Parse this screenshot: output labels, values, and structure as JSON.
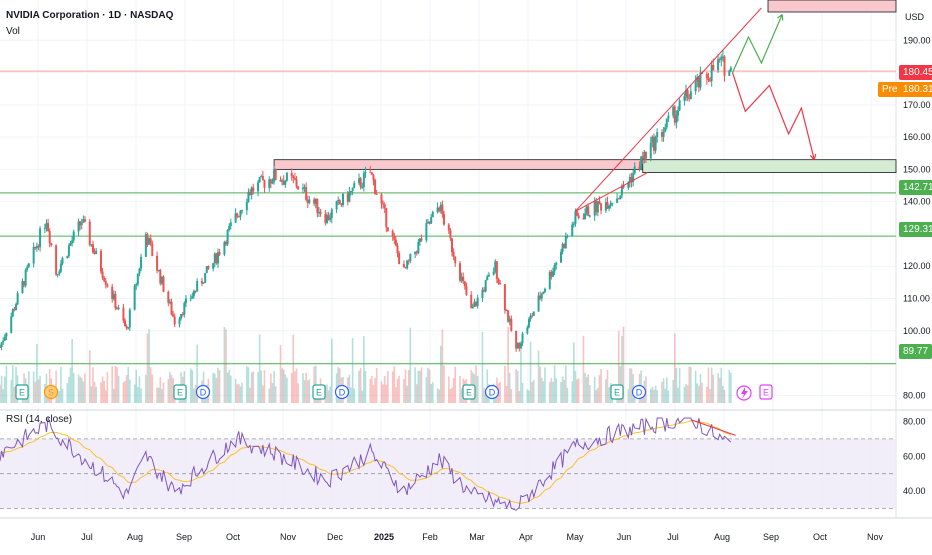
{
  "header": {
    "title": "NVIDIA Corporation · 1D · NASDAQ",
    "vol_label": "Vol"
  },
  "rsi": {
    "label": "RSI (14, close)",
    "ticks": [
      "80.00",
      "60.00",
      "40.00"
    ]
  },
  "price_axis": {
    "currency": "USD",
    "ticks": [
      "190.00",
      "170.00",
      "160.00",
      "150.00",
      "140.00",
      "120.00",
      "110.00",
      "100.00",
      "80.00"
    ]
  },
  "labels": {
    "last_price": "180.45",
    "pre_label": "Pre",
    "pre_price": "180.31",
    "level_1": "142.71",
    "level_2": "129.31",
    "level_3": "89.77"
  },
  "x_axis": {
    "months": [
      "Jun",
      "Jul",
      "Aug",
      "Sep",
      "Oct",
      "Nov",
      "Dec",
      "2025",
      "Feb",
      "Mar",
      "Apr",
      "May",
      "Jun",
      "Jul",
      "Aug",
      "Sep",
      "Oct",
      "Nov"
    ]
  },
  "event_markers": [
    "E",
    "S",
    "E",
    "D",
    "E",
    "D",
    "E",
    "D",
    "E",
    "D",
    "E"
  ],
  "colors": {
    "up": "#26a69a",
    "down": "#ef5350",
    "rsi_line": "#7e57c2",
    "rsi_ma": "#fbc02d",
    "zone_red": "#f8c8cc",
    "zone_green": "#d4ecd4",
    "hline": "#4caf50",
    "last_price_bg": "#f23645",
    "pre_bg": "#fb8c00",
    "level_bg": "#4caf50"
  },
  "chart_data": {
    "type": "candlestick",
    "symbol": "NVDA",
    "interval": "1D",
    "x_range": [
      "2024-05-20",
      "2025-11-30"
    ],
    "y_range": [
      77,
      200
    ],
    "y_scale": "linear",
    "price_path": [
      {
        "date": "2024-05-20",
        "close": 95
      },
      {
        "date": "2024-06-18",
        "close": 135
      },
      {
        "date": "2024-06-24",
        "close": 118
      },
      {
        "date": "2024-07-10",
        "close": 134
      },
      {
        "date": "2024-08-07",
        "close": 100
      },
      {
        "date": "2024-08-19",
        "close": 130
      },
      {
        "date": "2024-09-06",
        "close": 103
      },
      {
        "date": "2024-09-30",
        "close": 121
      },
      {
        "date": "2024-10-22",
        "close": 143
      },
      {
        "date": "2024-11-07",
        "close": 148
      },
      {
        "date": "2024-11-20",
        "close": 146
      },
      {
        "date": "2024-12-10",
        "close": 135
      },
      {
        "date": "2025-01-06",
        "close": 149
      },
      {
        "date": "2025-01-27",
        "close": 118
      },
      {
        "date": "2025-02-18",
        "close": 139
      },
      {
        "date": "2025-03-10",
        "close": 106
      },
      {
        "date": "2025-03-25",
        "close": 120
      },
      {
        "date": "2025-04-07",
        "close": 94
      },
      {
        "date": "2025-05-14",
        "close": 135
      },
      {
        "date": "2025-06-10",
        "close": 142
      },
      {
        "date": "2025-06-30",
        "close": 157
      },
      {
        "date": "2025-07-25",
        "close": 174
      },
      {
        "date": "2025-08-12",
        "close": 183
      },
      {
        "date": "2025-08-19",
        "close": 180.45
      }
    ],
    "last_price": 180.45,
    "pre_price": 180.31,
    "horizontal_levels": [
      142.71,
      129.31,
      89.77
    ],
    "zones": [
      {
        "type": "supply",
        "from": "2024-11-07",
        "to": "2025-06-25",
        "low": 150,
        "high": 153
      },
      {
        "type": "demand",
        "from": "2025-06-25",
        "to": "2025-11-30",
        "low": 149,
        "high": 153
      }
    ],
    "projections": [
      {
        "direction": "up",
        "points": [
          [
            "2025-08-20",
            180
          ],
          [
            "2025-08-30",
            191
          ],
          [
            "2025-09-07",
            183
          ],
          [
            "2025-09-20",
            198
          ]
        ]
      },
      {
        "direction": "down",
        "points": [
          [
            "2025-08-20",
            180
          ],
          [
            "2025-08-28",
            168
          ],
          [
            "2025-09-12",
            176
          ],
          [
            "2025-09-24",
            161
          ],
          [
            "2025-10-02",
            169
          ],
          [
            "2025-10-10",
            153
          ]
        ]
      }
    ],
    "rsi_range": [
      28,
      82
    ],
    "rsi_path": [
      {
        "date": "2024-05-20",
        "value": 62
      },
      {
        "date": "2024-06-18",
        "value": 78
      },
      {
        "date": "2024-07-10",
        "value": 60
      },
      {
        "date": "2024-08-07",
        "value": 38
      },
      {
        "date": "2024-08-19",
        "value": 60
      },
      {
        "date": "2024-09-06",
        "value": 40
      },
      {
        "date": "2024-10-14",
        "value": 70
      },
      {
        "date": "2024-11-07",
        "value": 62
      },
      {
        "date": "2024-12-10",
        "value": 46
      },
      {
        "date": "2025-01-06",
        "value": 62
      },
      {
        "date": "2025-01-27",
        "value": 40
      },
      {
        "date": "2025-02-18",
        "value": 58
      },
      {
        "date": "2025-03-10",
        "value": 38
      },
      {
        "date": "2025-04-07",
        "value": 30
      },
      {
        "date": "2025-05-14",
        "value": 66
      },
      {
        "date": "2025-06-10",
        "value": 74
      },
      {
        "date": "2025-07-25",
        "value": 82
      },
      {
        "date": "2025-08-19",
        "value": 66
      }
    ],
    "rsi_bands": [
      30,
      50,
      70
    ]
  }
}
